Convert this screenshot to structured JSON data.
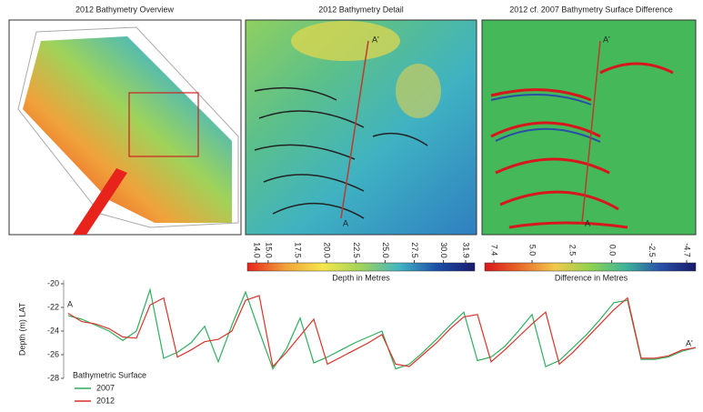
{
  "panels": [
    {
      "title": "2012 Bathymetry Overview"
    },
    {
      "title": "2012 Bathymetry Detail",
      "section_start": "A",
      "section_end": "A'",
      "colorbar": {
        "label": "Depth in Metres",
        "colors": [
          "#e8231c",
          "#f0a23a",
          "#f5e74a",
          "#9fd35a",
          "#42b6c4",
          "#1b4fa8",
          "#1a1a6e"
        ],
        "ticks": [
          {
            "value": 14,
            "label": "14.0"
          },
          {
            "value": 15,
            "label": "15.0"
          },
          17.5,
          {
            "value": 20,
            "label": "20.0"
          },
          22.5,
          {
            "value": 25,
            "label": "25.0"
          },
          27.5,
          {
            "value": 30,
            "label": "30.0"
          },
          31.9
        ]
      }
    },
    {
      "title": "2012 cf. 2007 Bathymetry Surface Difference",
      "section_start": "A",
      "section_end": "A'",
      "colorbar": {
        "label": "Difference in Metres",
        "colors": [
          "#d8161b",
          "#e86a2a",
          "#f2c94a",
          "#8fd24f",
          "#3eb59a",
          "#2a4fa8",
          "#161a6a"
        ],
        "ticks": [
          7.4,
          {
            "value": 5,
            "label": "5.0"
          },
          2.5,
          {
            "value": 0,
            "label": "0.0"
          },
          -2.5,
          -4.7
        ]
      }
    }
  ],
  "chart_data": {
    "type": "line",
    "y_label": "Depth (m) LAT",
    "legend_title": "Bathymetric Surface",
    "start_label": "A",
    "end_label": "A'",
    "ylim": [
      -28,
      -20
    ],
    "yticks": [
      -20,
      -22,
      -24,
      -26,
      -28
    ],
    "series": [
      {
        "name": "2007",
        "color": "#2fae5e",
        "values": [
          -22.7,
          -23.0,
          -23.5,
          -24.0,
          -24.8,
          -24.0,
          -20.5,
          -26.3,
          -25.8,
          -25.0,
          -23.6,
          -26.6,
          -23.5,
          -20.7,
          -24.0,
          -27.2,
          -25.5,
          -22.9,
          -26.7,
          -26.2,
          -25.6,
          -25.0,
          -24.5,
          -24.0,
          -27.2,
          -26.8,
          -25.8,
          -24.7,
          -23.5,
          -22.4,
          -26.5,
          -26.2,
          -25.3,
          -24.0,
          -22.6,
          -27.0,
          -26.5,
          -25.4,
          -24.3,
          -23.0,
          -21.6,
          -21.4,
          -26.4,
          -26.4,
          -26.2,
          -25.7,
          -25.4
        ]
      },
      {
        "name": "2012",
        "color": "#d9322a",
        "values": [
          -22.5,
          -23.2,
          -23.4,
          -23.8,
          -24.5,
          -24.6,
          -21.8,
          -21.2,
          -26.2,
          -25.6,
          -24.9,
          -24.7,
          -24.0,
          -21.4,
          -21.0,
          -27.0,
          -25.8,
          -24.4,
          -23.0,
          -26.8,
          -26.2,
          -25.6,
          -25.0,
          -24.3,
          -26.8,
          -27.0,
          -26.0,
          -25.0,
          -23.8,
          -22.8,
          -22.6,
          -26.6,
          -25.6,
          -24.5,
          -23.4,
          -22.4,
          -26.8,
          -25.8,
          -24.6,
          -23.4,
          -22.2,
          -21.2,
          -26.3,
          -26.3,
          -26.1,
          -25.6,
          -25.4
        ]
      }
    ]
  }
}
